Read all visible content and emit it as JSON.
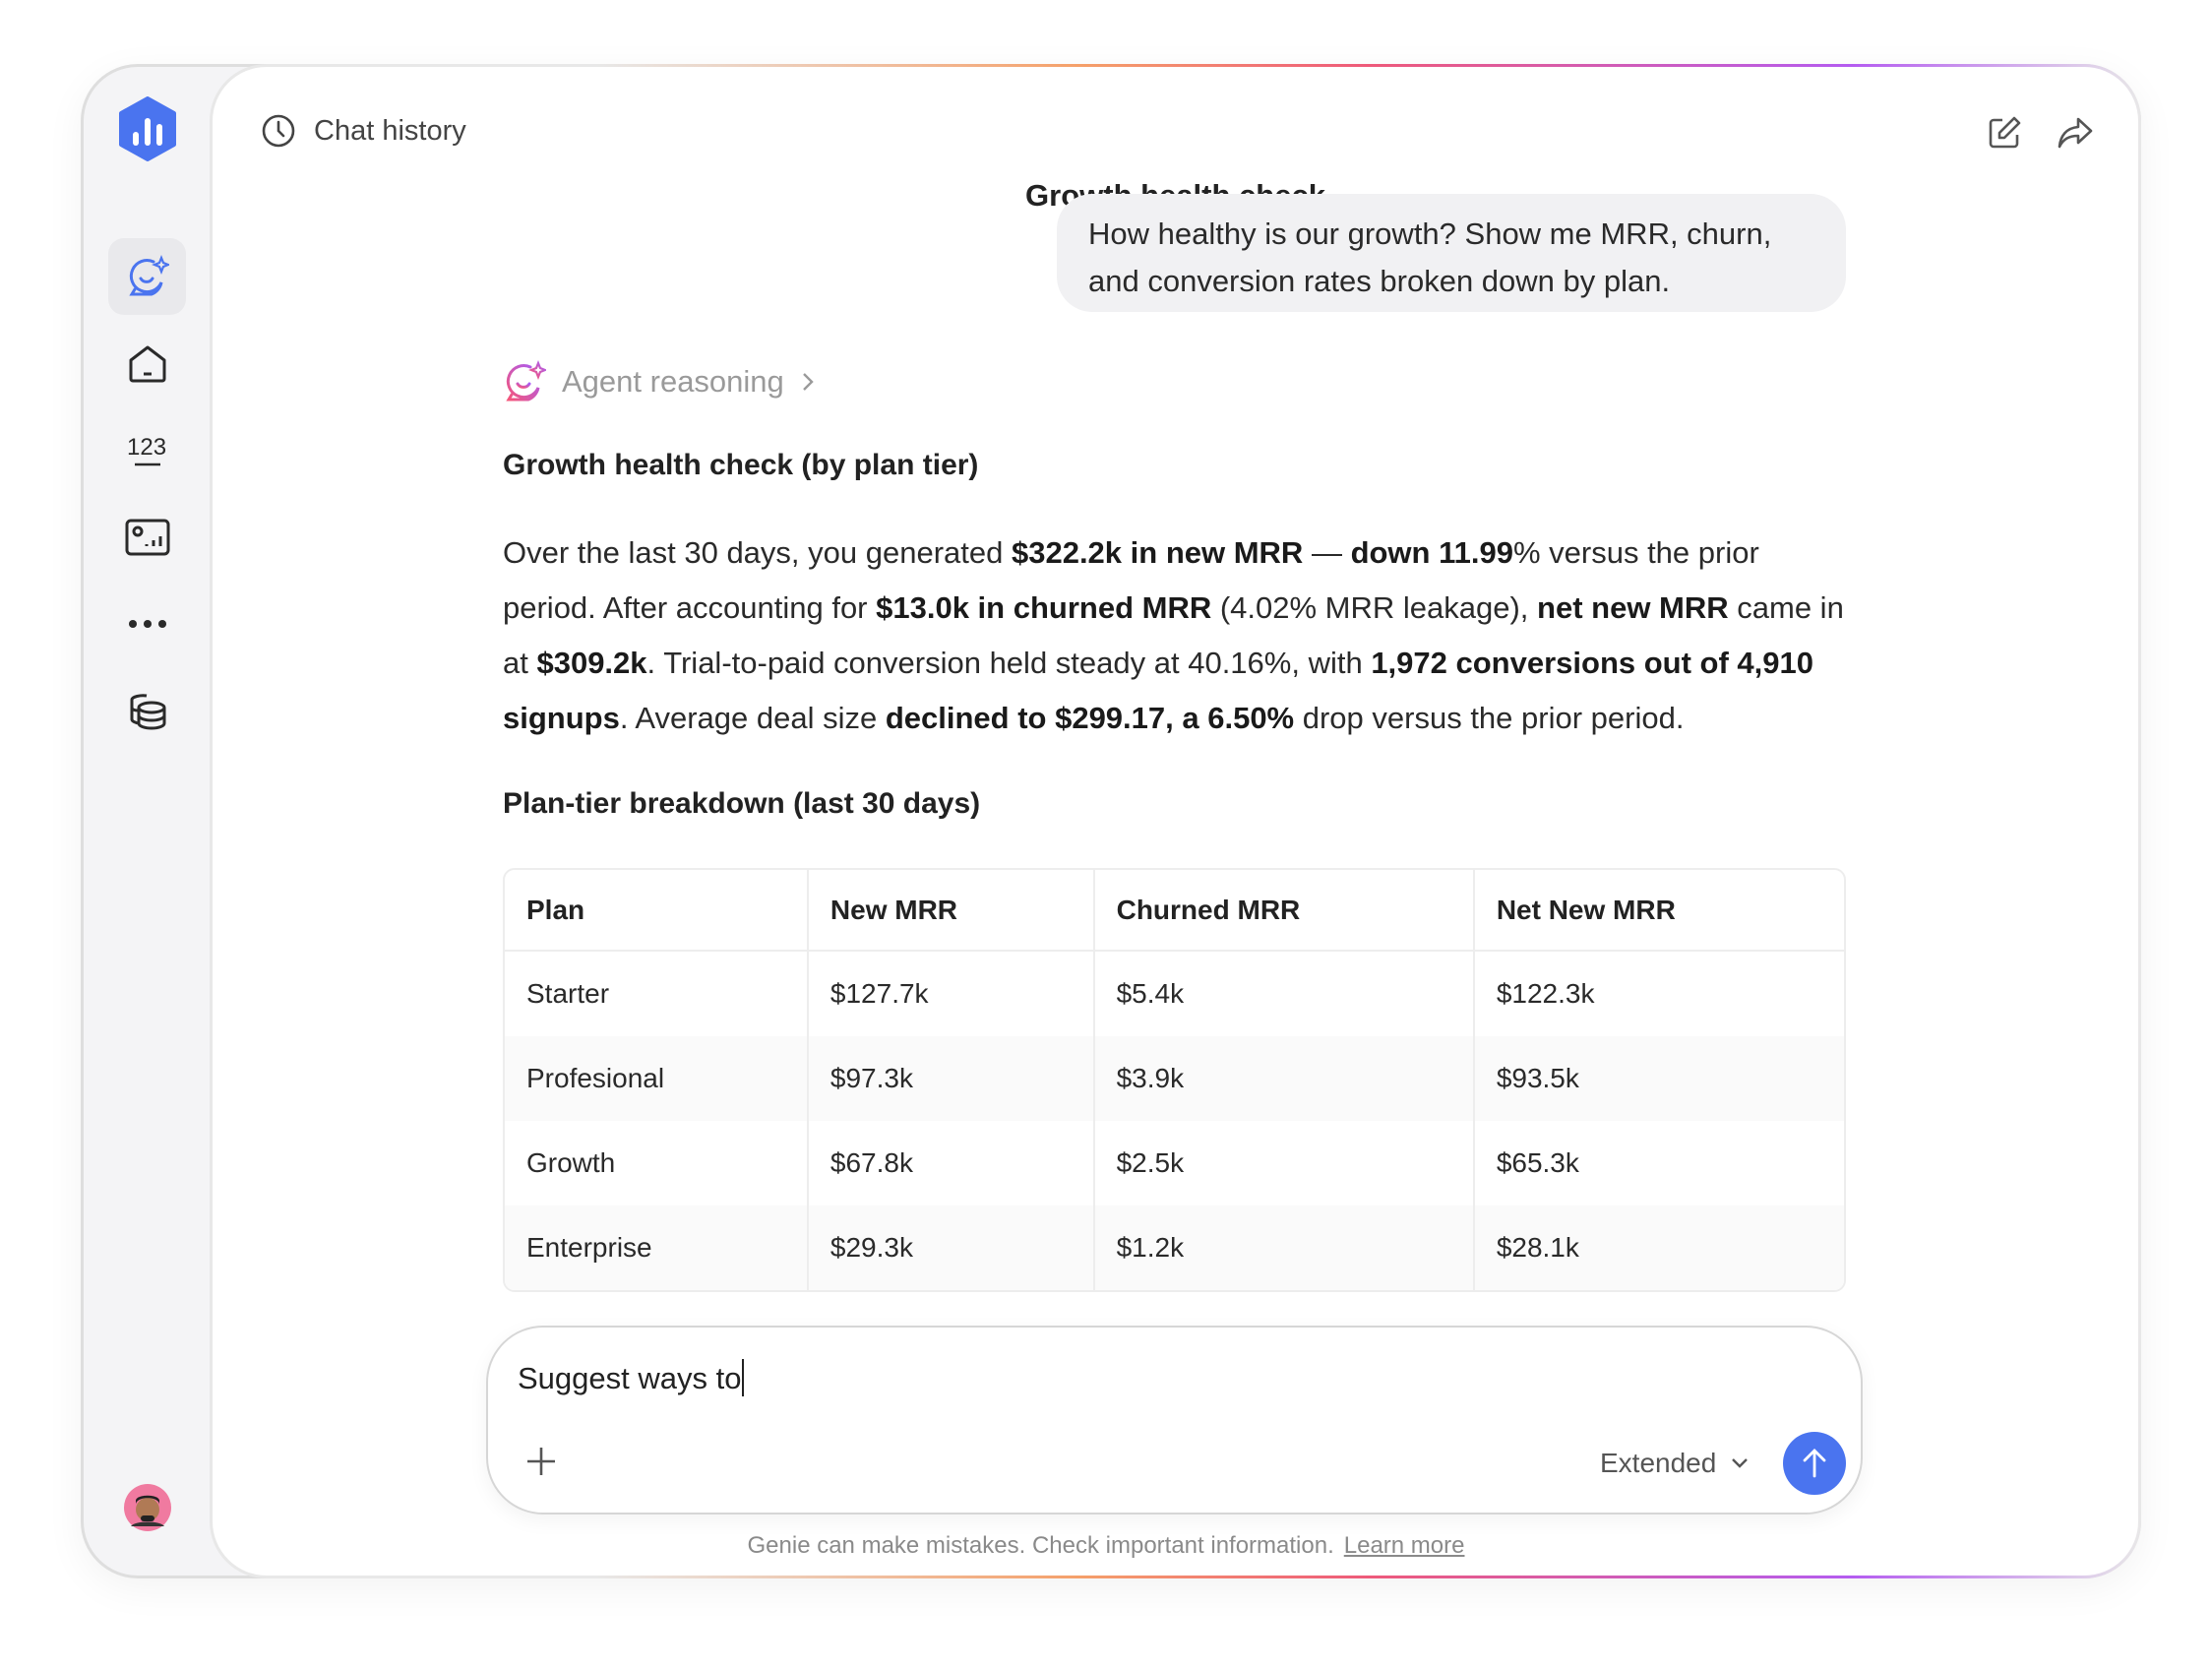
{
  "header": {
    "chat_history": "Chat history",
    "title": "Growth health check"
  },
  "user_message": "How healthy is our growth? Show me MRR, churn, and conversion rates broken down by plan.",
  "agent": {
    "reasoning_label": "Agent reasoning",
    "heading": "Growth health check (by plan tier)",
    "paragraph": [
      {
        "t": "Over the last 30 days, you generated "
      },
      {
        "t": "$322.2k in new MRR",
        "b": true
      },
      {
        "t": " — "
      },
      {
        "t": "down 11.99",
        "b": true
      },
      {
        "t": "% versus the prior period. After accounting for "
      },
      {
        "t": "$13.0k in churned MRR",
        "b": true
      },
      {
        "t": " (4.02% MRR leakage), "
      },
      {
        "t": "net new MRR",
        "b": true
      },
      {
        "t": " came in at "
      },
      {
        "t": "$309.2k",
        "b": true
      },
      {
        "t": ". Trial-to-paid conversion held steady at 40.16%, with "
      },
      {
        "t": "1,972 conversions out of 4,910 signups",
        "b": true
      },
      {
        "t": ". Average deal size "
      },
      {
        "t": "declined to $299.17, a 6.50%",
        "b": true
      },
      {
        "t": " drop versus the prior period."
      }
    ],
    "table_heading": "Plan-tier breakdown (last 30 days)",
    "table": {
      "columns": [
        "Plan",
        "New MRR",
        "Churned MRR",
        "Net New MRR"
      ],
      "rows": [
        [
          "Starter",
          "$127.7k",
          "$5.4k",
          "$122.3k"
        ],
        [
          "Profesional",
          "$97.3k",
          "$3.9k",
          "$93.5k"
        ],
        [
          "Growth",
          "$67.8k",
          "$2.5k",
          "$65.3k"
        ],
        [
          "Enterprise",
          "$29.3k",
          "$1.2k",
          "$28.1k"
        ]
      ]
    }
  },
  "composer": {
    "value": "Suggest ways to",
    "mode": "Extended"
  },
  "footer": {
    "disclaimer": "Genie can make mistakes. Check important information.",
    "learn_more": "Learn more"
  },
  "colors": {
    "accent": "#4a74ef",
    "sidebar_bg": "#f4f4f6"
  },
  "sidebar": {
    "items": [
      "logo",
      "assistant-icon",
      "home-icon",
      "numbers-icon",
      "dashboard-icon",
      "more-icon",
      "database-icon",
      "avatar"
    ]
  }
}
